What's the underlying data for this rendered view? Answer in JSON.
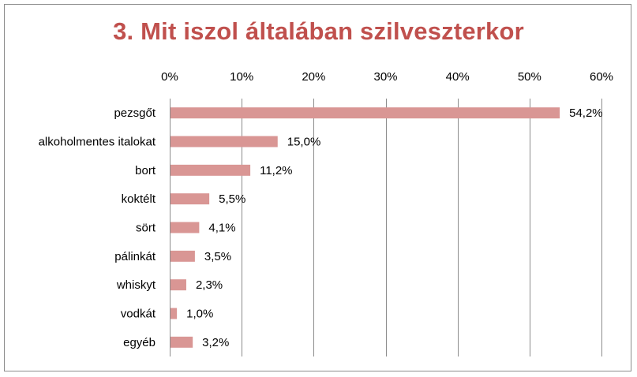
{
  "chart_data": {
    "type": "bar",
    "orientation": "horizontal",
    "title": "3. Mit iszol általában szilveszterkor",
    "categories": [
      "pezsgőt",
      "alkoholmentes italokat",
      "bort",
      "koktélt",
      "sört",
      "pálinkát",
      "whiskyt",
      "vodkát",
      "egyéb"
    ],
    "values": [
      54.2,
      15.0,
      11.2,
      5.5,
      4.1,
      3.5,
      2.3,
      1.0,
      3.2
    ],
    "data_labels": [
      "54,2%",
      "15,0%",
      "11,2%",
      "5,5%",
      "4,1%",
      "3,5%",
      "2,3%",
      "1,0%",
      "3,2%"
    ],
    "xlim": [
      0,
      60
    ],
    "x_ticks": [
      0,
      10,
      20,
      30,
      40,
      50,
      60
    ],
    "x_tick_labels": [
      "0%",
      "10%",
      "20%",
      "30%",
      "40%",
      "50%",
      "60%"
    ],
    "x_axis_position": "top",
    "grid": true,
    "legend": "none",
    "bar_color": "#d99694",
    "title_color": "#c0504d"
  }
}
